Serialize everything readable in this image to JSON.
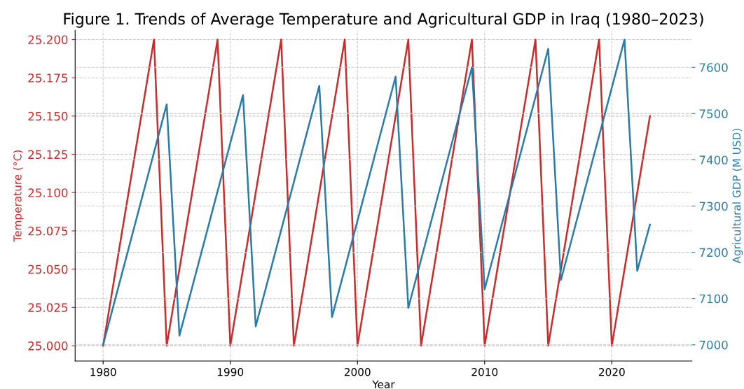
{
  "chart_data": {
    "type": "line",
    "title": "Figure 1. Trends of Average Temperature and Agricultural GDP in Iraq (1980–2023)",
    "xlabel": "Year",
    "ylabel": "Temperature (°C)",
    "y2label": "Agricultural GDP (M USD)",
    "x": [
      1980,
      1981,
      1982,
      1983,
      1984,
      1985,
      1986,
      1987,
      1988,
      1989,
      1990,
      1991,
      1992,
      1993,
      1994,
      1995,
      1996,
      1997,
      1998,
      1999,
      2000,
      2001,
      2002,
      2003,
      2004,
      2005,
      2006,
      2007,
      2008,
      2009,
      2010,
      2011,
      2012,
      2013,
      2014,
      2015,
      2016,
      2017,
      2018,
      2019,
      2020,
      2021,
      2022,
      2023
    ],
    "series": [
      {
        "color": "#cc2b2b",
        "values": [
          25.0,
          25.05,
          25.1,
          25.15,
          25.2,
          25.0,
          25.05,
          25.1,
          25.15,
          25.2,
          25.0,
          25.05,
          25.1,
          25.15,
          25.2,
          25.0,
          25.05,
          25.1,
          25.15,
          25.2,
          25.0,
          25.05,
          25.1,
          25.15,
          25.2,
          25.0,
          25.05,
          25.1,
          25.15,
          25.2,
          25.0,
          25.05,
          25.1,
          25.15,
          25.2,
          25.0,
          25.05,
          25.1,
          25.15,
          25.2,
          25.0,
          25.05,
          25.1,
          25.15
        ]
      },
      {
        "color": "#2a7ca6",
        "axis": "y2",
        "values": [
          7000,
          7104,
          7208,
          7312,
          7416,
          7520,
          7020,
          7124,
          7228,
          7332,
          7436,
          7540,
          7040,
          7144,
          7248,
          7352,
          7456,
          7560,
          7060,
          7164,
          7268,
          7372,
          7476,
          7580,
          7080,
          7184,
          7288,
          7392,
          7496,
          7600,
          7120,
          7224,
          7328,
          7432,
          7536,
          7640,
          7140,
          7244,
          7348,
          7452,
          7556,
          7660,
          7160,
          7260
        ]
      }
    ],
    "xlim": [
      1977.8,
      2026.3
    ],
    "xticks": [
      1980,
      1990,
      2000,
      2010,
      2020
    ],
    "ylim": [
      24.99,
      25.206
    ],
    "yticks": [
      {
        "value": 25.0,
        "label": "25.000"
      },
      {
        "value": 25.025,
        "label": "25.025"
      },
      {
        "value": 25.05,
        "label": "25.050"
      },
      {
        "value": 25.075,
        "label": "25.075"
      },
      {
        "value": 25.1,
        "label": "25.100"
      },
      {
        "value": 25.125,
        "label": "25.125"
      },
      {
        "value": 25.15,
        "label": "25.150"
      },
      {
        "value": 25.175,
        "label": "25.175"
      },
      {
        "value": 25.2,
        "label": "25.200"
      }
    ],
    "y2lim": [
      6965,
      7680
    ],
    "y2ticks": [
      7000,
      7100,
      7200,
      7300,
      7400,
      7500,
      7600
    ],
    "grid": true,
    "line_style": "solid",
    "marker": "none"
  }
}
